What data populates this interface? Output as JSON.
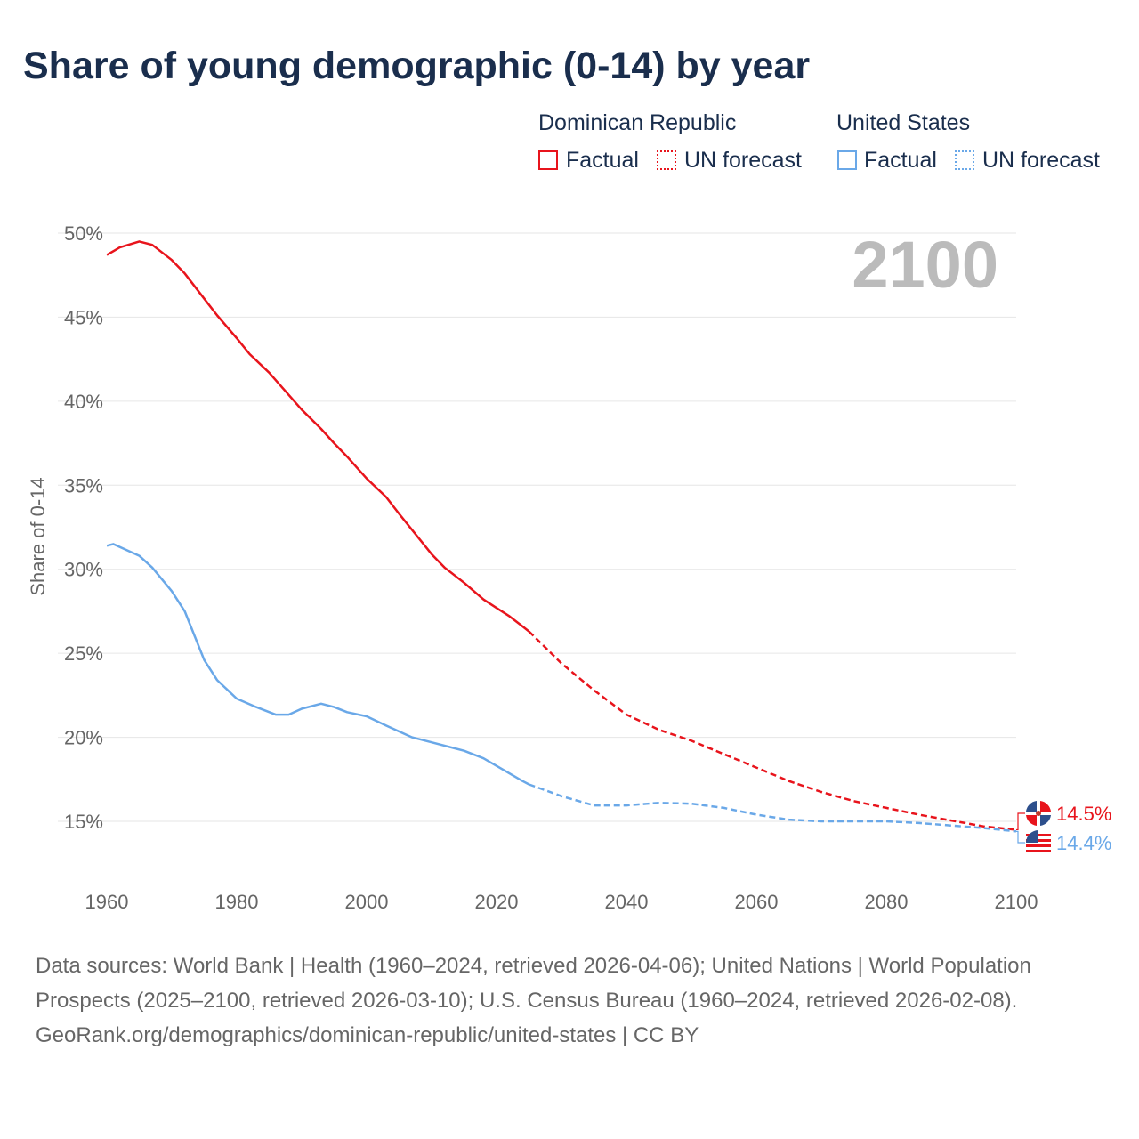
{
  "chart_data": {
    "type": "line",
    "title": "Share of young demographic (0-14) by year",
    "ylabel": "Share of 0-14",
    "xlabel": "",
    "xlim": [
      1960,
      2100
    ],
    "ylim": [
      12.5,
      50.5
    ],
    "x_ticks": [
      "1960",
      "1980",
      "2000",
      "2020",
      "2040",
      "2060",
      "2080",
      "2100"
    ],
    "y_ticks": [
      "15%",
      "20%",
      "25%",
      "30%",
      "35%",
      "40%",
      "45%",
      "50%"
    ],
    "y_tick_values": [
      15,
      20,
      25,
      30,
      35,
      40,
      45,
      50
    ],
    "x_tick_values": [
      1960,
      1980,
      2000,
      2020,
      2040,
      2060,
      2080,
      2100
    ],
    "grid": true,
    "current_year_label": "2100",
    "legend": {
      "placement": "top-right",
      "groups": [
        {
          "name": "Dominican Republic",
          "items": [
            "Factual",
            "UN forecast"
          ]
        },
        {
          "name": "United States",
          "items": [
            "Factual",
            "UN forecast"
          ]
        }
      ]
    },
    "series": [
      {
        "name": "Dominican Republic",
        "color": "#e8141c",
        "end_label": "14.5%",
        "factual": [
          [
            1960,
            48.7
          ],
          [
            1962,
            49.15
          ],
          [
            1965,
            49.5
          ],
          [
            1967,
            49.3
          ],
          [
            1970,
            48.4
          ],
          [
            1972,
            47.6
          ],
          [
            1975,
            46.1
          ],
          [
            1977,
            45.1
          ],
          [
            1980,
            43.75
          ],
          [
            1982,
            42.8
          ],
          [
            1985,
            41.7
          ],
          [
            1990,
            39.5
          ],
          [
            1993,
            38.35
          ],
          [
            1995,
            37.5
          ],
          [
            1997,
            36.7
          ],
          [
            2000,
            35.4
          ],
          [
            2003,
            34.3
          ],
          [
            2005,
            33.3
          ],
          [
            2010,
            30.9
          ],
          [
            2012,
            30.1
          ],
          [
            2015,
            29.2
          ],
          [
            2018,
            28.2
          ],
          [
            2020,
            27.7
          ],
          [
            2022,
            27.2
          ],
          [
            2024,
            26.6
          ],
          [
            2025,
            26.3
          ]
        ],
        "forecast": [
          [
            2025,
            26.3
          ],
          [
            2030,
            24.4
          ],
          [
            2035,
            22.8
          ],
          [
            2040,
            21.35
          ],
          [
            2045,
            20.45
          ],
          [
            2050,
            19.8
          ],
          [
            2055,
            19.0
          ],
          [
            2060,
            18.2
          ],
          [
            2065,
            17.4
          ],
          [
            2070,
            16.75
          ],
          [
            2075,
            16.2
          ],
          [
            2080,
            15.8
          ],
          [
            2085,
            15.4
          ],
          [
            2090,
            15.05
          ],
          [
            2095,
            14.7
          ],
          [
            2100,
            14.5
          ]
        ]
      },
      {
        "name": "United States",
        "color": "#6aa8e8",
        "end_label": "14.4%",
        "factual": [
          [
            1960,
            31.4
          ],
          [
            1961,
            31.5
          ],
          [
            1965,
            30.8
          ],
          [
            1967,
            30.1
          ],
          [
            1970,
            28.7
          ],
          [
            1972,
            27.5
          ],
          [
            1975,
            24.6
          ],
          [
            1977,
            23.4
          ],
          [
            1980,
            22.3
          ],
          [
            1983,
            21.8
          ],
          [
            1986,
            21.35
          ],
          [
            1988,
            21.35
          ],
          [
            1990,
            21.7
          ],
          [
            1993,
            22.0
          ],
          [
            1995,
            21.8
          ],
          [
            1997,
            21.5
          ],
          [
            2000,
            21.25
          ],
          [
            2003,
            20.7
          ],
          [
            2005,
            20.35
          ],
          [
            2007,
            20.0
          ],
          [
            2010,
            19.7
          ],
          [
            2015,
            19.2
          ],
          [
            2018,
            18.75
          ],
          [
            2020,
            18.3
          ],
          [
            2024,
            17.4
          ],
          [
            2025,
            17.2
          ]
        ],
        "forecast": [
          [
            2025,
            17.2
          ],
          [
            2030,
            16.5
          ],
          [
            2035,
            15.95
          ],
          [
            2040,
            15.95
          ],
          [
            2045,
            16.1
          ],
          [
            2050,
            16.05
          ],
          [
            2055,
            15.8
          ],
          [
            2060,
            15.4
          ],
          [
            2065,
            15.1
          ],
          [
            2070,
            15.0
          ],
          [
            2080,
            15.0
          ],
          [
            2085,
            14.9
          ],
          [
            2090,
            14.75
          ],
          [
            2095,
            14.6
          ],
          [
            2100,
            14.4
          ]
        ]
      }
    ]
  },
  "footer": {
    "sources": "Data sources: World Bank | Health (1960–2024, retrieved 2026-04-06); United Nations | World Population Prospects (2025–2100, retrieved 2026-03-10); U.S. Census Bureau (1960–2024, retrieved 2026-02-08).",
    "credit": "GeoRank.org/demographics/dominican-republic/united-states | CC BY"
  }
}
